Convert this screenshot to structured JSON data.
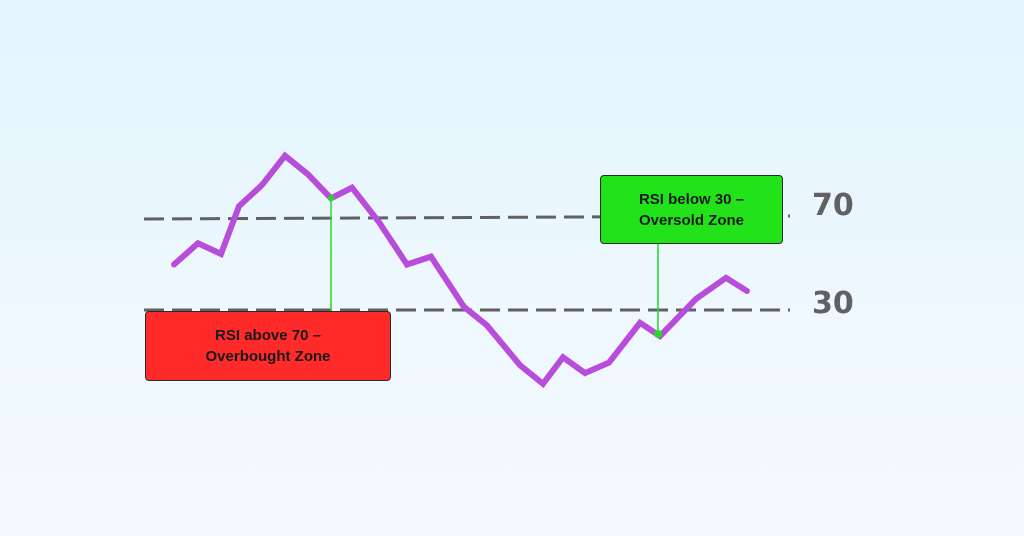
{
  "levels": {
    "overbought": {
      "label": "70",
      "value": 70
    },
    "oversold": {
      "label": "30",
      "value": 30
    }
  },
  "rsi_series": [
    50,
    58,
    54,
    72,
    80,
    91,
    84,
    75,
    79,
    66,
    50,
    53,
    34,
    27,
    12,
    5,
    15,
    9,
    13,
    28,
    23,
    37,
    45,
    40
  ],
  "callouts": {
    "overbought": {
      "line1": "RSI above 70 –",
      "line2": "Overbought Zone",
      "color": "#ff2a2a"
    },
    "oversold": {
      "line1": "RSI below 30 –",
      "line2": "Oversold Zone",
      "color": "#22e31a"
    }
  },
  "colors": {
    "rsi_line": "#b84ddb",
    "level_line": "#616161",
    "connector": "#22dd22"
  }
}
